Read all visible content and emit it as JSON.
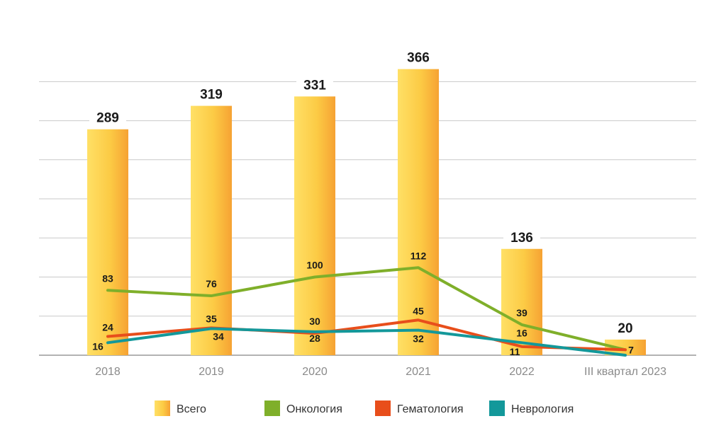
{
  "chart_data": {
    "type": "bar",
    "categories": [
      "2018",
      "2019",
      "2020",
      "2021",
      "2022",
      "III квартал 2023"
    ],
    "ylim": [
      0,
      420
    ],
    "grid": true,
    "legend_position": "bottom",
    "bars": {
      "name": "Всего",
      "values": [
        289,
        319,
        331,
        366,
        136,
        20
      ],
      "color": "#F9B233"
    },
    "lines": [
      {
        "name": "Онкология",
        "values": [
          83,
          76,
          100,
          112,
          39,
          7
        ],
        "color": "#7FAF2A"
      },
      {
        "name": "Гематология",
        "values": [
          24,
          35,
          28,
          45,
          11,
          7
        ],
        "color": "#E84E1B"
      },
      {
        "name": "Неврология",
        "values": [
          16,
          34,
          30,
          32,
          16,
          0
        ],
        "color": "#13989A"
      }
    ],
    "point_labels": {
      "Онкология": [
        "83",
        "76",
        "100",
        "112",
        "39",
        "7"
      ],
      "Гематология": [
        "24",
        "35",
        "28",
        "45",
        "11",
        ""
      ],
      "Неврология": [
        "16",
        "34",
        "30",
        "32",
        "16",
        ""
      ]
    }
  }
}
